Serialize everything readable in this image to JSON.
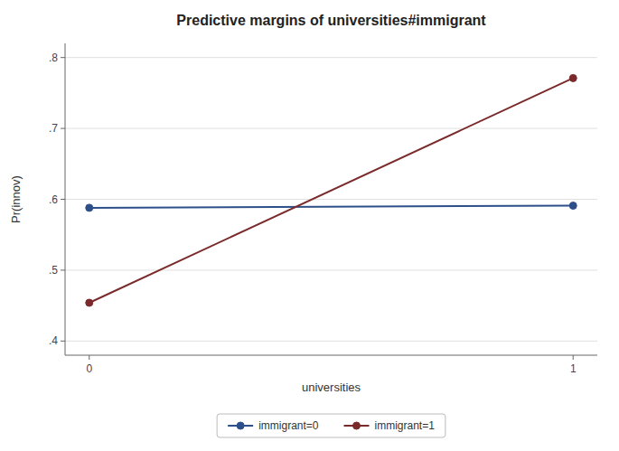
{
  "chart_data": {
    "type": "line",
    "title": "Predictive margins of universities#immigrant",
    "xlabel": "universities",
    "ylabel": "Pr(innov)",
    "x": [
      0,
      1
    ],
    "xlim": [
      -0.05,
      1.05
    ],
    "ylim": [
      0.38,
      0.82
    ],
    "xticks": [
      0,
      1
    ],
    "yticks": [
      {
        "value": 0.4,
        "label": ".4"
      },
      {
        "value": 0.5,
        "label": ".5"
      },
      {
        "value": 0.6,
        "label": ".6"
      },
      {
        "value": 0.7,
        "label": ".7"
      },
      {
        "value": 0.8,
        "label": ".8"
      }
    ],
    "grid": "y",
    "legend": "bottom",
    "series": [
      {
        "name": "immigrant=0",
        "color": "#2d4f8a",
        "marker": "circle",
        "values": [
          0.588,
          0.591
        ]
      },
      {
        "name": "immigrant=1",
        "color": "#7a2a2a",
        "marker": "circle",
        "values": [
          0.454,
          0.771
        ]
      }
    ]
  }
}
